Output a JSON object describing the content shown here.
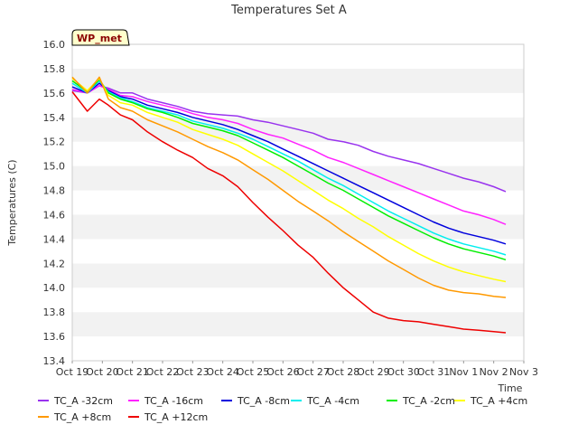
{
  "chart_data": {
    "type": "line",
    "title": "Temperatures Set A",
    "xlabel": "Time",
    "ylabel": "Temperatures (C)",
    "badge": "WP_met",
    "xlim": [
      0,
      15
    ],
    "ylim": [
      13.4,
      16.0
    ],
    "x_ticks": [
      "Oct 19",
      "Oct 20",
      "Oct 21",
      "Oct 22",
      "Oct 23",
      "Oct 24",
      "Oct 25",
      "Oct 26",
      "Oct 27",
      "Oct 28",
      "Oct 29",
      "Oct 30",
      "Oct 31",
      "Nov 1",
      "Nov 2",
      "Nov 3"
    ],
    "y_ticks": [
      "13.4",
      "13.6",
      "13.8",
      "14.0",
      "14.2",
      "14.4",
      "14.6",
      "14.8",
      "15.0",
      "15.2",
      "15.4",
      "15.6",
      "15.8",
      "16.0"
    ],
    "grid": "horizontal bands",
    "legend_position": "bottom",
    "x_days": [
      0,
      0.5,
      0.9,
      1.2,
      1.6,
      2,
      2.5,
      3,
      3.5,
      4,
      4.5,
      5,
      5.5,
      6,
      6.5,
      7,
      7.5,
      8,
      8.5,
      9,
      9.5,
      10,
      10.5,
      11,
      11.5,
      12,
      12.5,
      13,
      13.5,
      14,
      14.4
    ],
    "series": [
      {
        "name": "TC_A -32cm",
        "color": "#9933ee",
        "values": [
          15.62,
          15.6,
          15.66,
          15.64,
          15.6,
          15.6,
          15.55,
          15.52,
          15.49,
          15.45,
          15.43,
          15.42,
          15.41,
          15.38,
          15.36,
          15.33,
          15.3,
          15.27,
          15.22,
          15.2,
          15.17,
          15.12,
          15.08,
          15.05,
          15.02,
          14.98,
          14.94,
          14.9,
          14.87,
          14.83,
          14.79
        ]
      },
      {
        "name": "TC_A -16cm",
        "color": "#ff22ff",
        "values": [
          15.63,
          15.6,
          15.66,
          15.63,
          15.58,
          15.57,
          15.53,
          15.5,
          15.47,
          15.43,
          15.4,
          15.38,
          15.35,
          15.3,
          15.26,
          15.23,
          15.18,
          15.13,
          15.07,
          15.03,
          14.98,
          14.93,
          14.88,
          14.83,
          14.78,
          14.73,
          14.68,
          14.63,
          14.6,
          14.56,
          14.52
        ]
      },
      {
        "name": "TC_A -8cm",
        "color": "#0000dd",
        "values": [
          15.65,
          15.6,
          15.68,
          15.62,
          15.57,
          15.55,
          15.5,
          15.47,
          15.44,
          15.4,
          15.37,
          15.34,
          15.3,
          15.25,
          15.2,
          15.14,
          15.08,
          15.02,
          14.96,
          14.9,
          14.84,
          14.78,
          14.72,
          14.66,
          14.6,
          14.54,
          14.49,
          14.45,
          14.42,
          14.39,
          14.36
        ]
      },
      {
        "name": "TC_A -4cm",
        "color": "#00eeee",
        "values": [
          15.68,
          15.6,
          15.7,
          15.61,
          15.56,
          15.53,
          15.48,
          15.45,
          15.42,
          15.37,
          15.34,
          15.31,
          15.27,
          15.22,
          15.16,
          15.1,
          15.04,
          14.97,
          14.9,
          14.84,
          14.77,
          14.7,
          14.63,
          14.57,
          14.51,
          14.45,
          14.4,
          14.36,
          14.33,
          14.3,
          14.27
        ]
      },
      {
        "name": "TC_A -2cm",
        "color": "#00ee00",
        "values": [
          15.7,
          15.61,
          15.71,
          15.6,
          15.55,
          15.52,
          15.47,
          15.44,
          15.4,
          15.35,
          15.32,
          15.29,
          15.25,
          15.19,
          15.13,
          15.07,
          15.0,
          14.93,
          14.86,
          14.8,
          14.73,
          14.66,
          14.59,
          14.53,
          14.47,
          14.41,
          14.36,
          14.32,
          14.29,
          14.26,
          14.23
        ]
      },
      {
        "name": "TC_A +4cm",
        "color": "#ffff00",
        "values": [
          15.72,
          15.62,
          15.72,
          15.58,
          15.52,
          15.5,
          15.44,
          15.4,
          15.36,
          15.3,
          15.26,
          15.22,
          15.17,
          15.1,
          15.03,
          14.96,
          14.88,
          14.8,
          14.72,
          14.65,
          14.57,
          14.5,
          14.42,
          14.35,
          14.28,
          14.22,
          14.17,
          14.13,
          14.1,
          14.07,
          14.05
        ]
      },
      {
        "name": "TC_A +8cm",
        "color": "#ff9900",
        "values": [
          15.73,
          15.6,
          15.73,
          15.55,
          15.48,
          15.45,
          15.38,
          15.33,
          15.28,
          15.22,
          15.16,
          15.11,
          15.05,
          14.97,
          14.89,
          14.8,
          14.71,
          14.63,
          14.55,
          14.46,
          14.38,
          14.3,
          14.22,
          14.15,
          14.08,
          14.02,
          13.98,
          13.96,
          13.95,
          13.93,
          13.92
        ]
      },
      {
        "name": "TC_A +12cm",
        "color": "#ee0000",
        "values": [
          15.61,
          15.45,
          15.55,
          15.5,
          15.42,
          15.38,
          15.28,
          15.2,
          15.13,
          15.07,
          14.98,
          14.92,
          14.83,
          14.7,
          14.58,
          14.47,
          14.35,
          14.25,
          14.12,
          14.0,
          13.9,
          13.8,
          13.75,
          13.73,
          13.72,
          13.7,
          13.68,
          13.66,
          13.65,
          13.64,
          13.63
        ]
      }
    ]
  }
}
